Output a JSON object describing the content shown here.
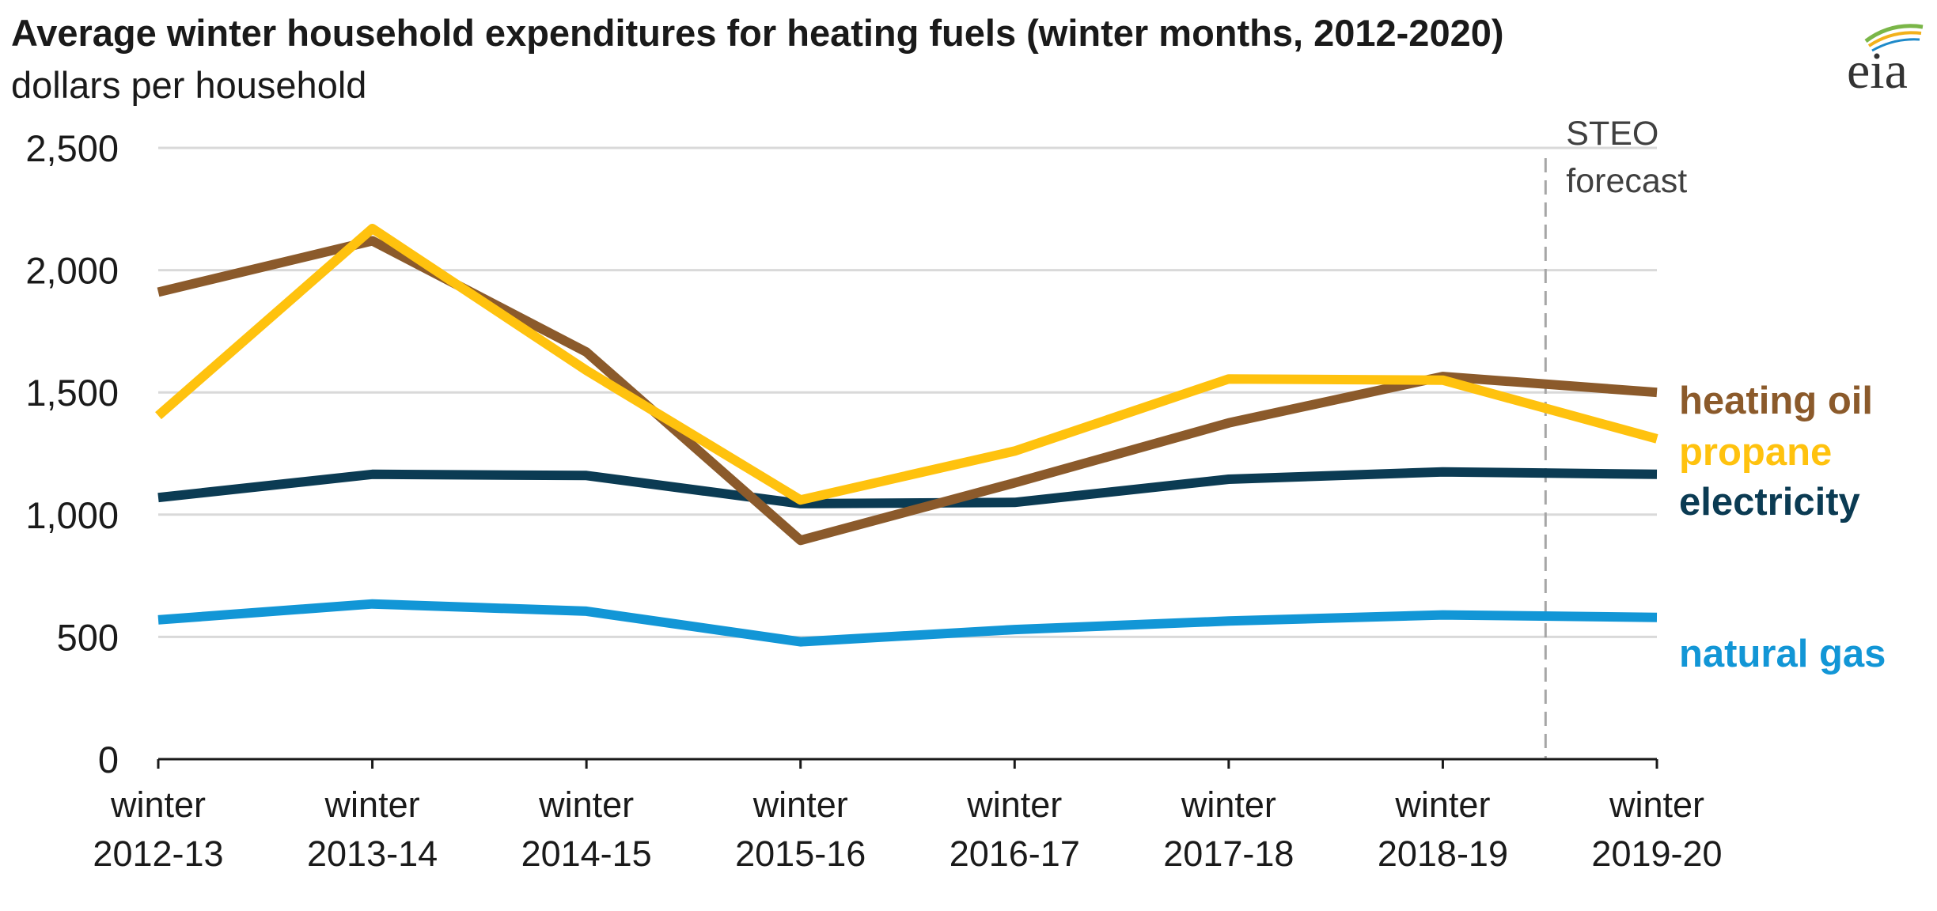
{
  "chart_data": {
    "type": "line",
    "title": "Average winter household expenditures for heating fuels (winter months, 2012-2020)",
    "subtitle": "dollars per household",
    "categories": [
      [
        "winter",
        "2012-13"
      ],
      [
        "winter",
        "2013-14"
      ],
      [
        "winter",
        "2014-15"
      ],
      [
        "winter",
        "2015-16"
      ],
      [
        "winter",
        "2016-17"
      ],
      [
        "winter",
        "2017-18"
      ],
      [
        "winter",
        "2018-19"
      ],
      [
        "winter",
        "2019-20"
      ]
    ],
    "ylim": [
      0,
      2500
    ],
    "yticks": [
      0,
      500,
      1000,
      1500,
      2000,
      2500
    ],
    "ytick_labels": [
      "0",
      "500",
      "1,000",
      "1,500",
      "2,000",
      "2,500"
    ],
    "grid": true,
    "legend": "direct labels at right end of lines",
    "forecast_marker": {
      "between_index": [
        6,
        7
      ],
      "label_lines": [
        "STEO",
        "forecast"
      ]
    },
    "series": [
      {
        "name": "heating oil",
        "color": "#8B5A2B",
        "values": [
          1910,
          2120,
          1665,
          895,
          1130,
          1375,
          1565,
          1500
        ]
      },
      {
        "name": "propane",
        "color": "#FFC20E",
        "values": [
          1405,
          2170,
          1590,
          1060,
          1260,
          1555,
          1550,
          1310
        ]
      },
      {
        "name": "electricity",
        "color": "#0B3B53",
        "values": [
          1070,
          1165,
          1160,
          1045,
          1050,
          1145,
          1175,
          1165
        ]
      },
      {
        "name": "natural gas",
        "color": "#1296D6",
        "values": [
          570,
          635,
          605,
          480,
          530,
          565,
          590,
          580
        ]
      }
    ]
  },
  "brand": {
    "logo_text": "eia"
  }
}
